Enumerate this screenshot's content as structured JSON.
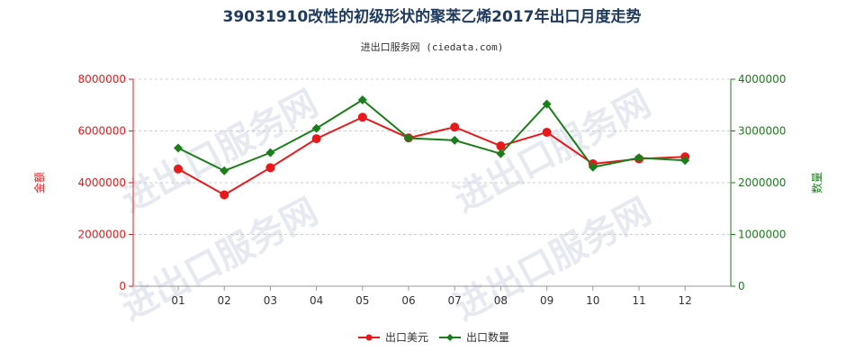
{
  "title": "39031910改性的初级形状的聚苯乙烯2017年出口月度走势",
  "subtitle": "进出口服务网 (ciedata.com)",
  "watermark": "进出口服务网",
  "colors": {
    "left": "#e8191a",
    "right": "#1a7f1a",
    "title": "#1f3a5f",
    "grid": "#cccccc"
  },
  "chart_data": {
    "type": "line",
    "title": "39031910改性的初级形状的聚苯乙烯2017年出口月度走势",
    "categories": [
      "01",
      "02",
      "03",
      "04",
      "05",
      "06",
      "07",
      "08",
      "09",
      "10",
      "11",
      "12"
    ],
    "y_left": {
      "label": "金额",
      "min": 0,
      "max": 8000000,
      "ticks": [
        "0",
        "2000000",
        "4000000",
        "6000000",
        "8000000"
      ]
    },
    "y_right": {
      "label": "数量",
      "min": 0,
      "max": 4000000,
      "ticks": [
        "0",
        "1000000",
        "2000000",
        "3000000",
        "4000000"
      ]
    },
    "series": [
      {
        "name": "出口美元",
        "axis": "left",
        "color": "#e8191a",
        "values": [
          4530000,
          3530000,
          4580000,
          5700000,
          6530000,
          5730000,
          6150000,
          5420000,
          5950000,
          4730000,
          4920000,
          5000000
        ]
      },
      {
        "name": "出口数量",
        "axis": "right",
        "color": "#1a7f1a",
        "values": [
          2670000,
          2230000,
          2580000,
          3050000,
          3600000,
          2860000,
          2820000,
          2560000,
          3520000,
          2300000,
          2480000,
          2430000
        ]
      }
    ],
    "legend_position": "bottom-center",
    "grid": "horizontal-dashed"
  }
}
